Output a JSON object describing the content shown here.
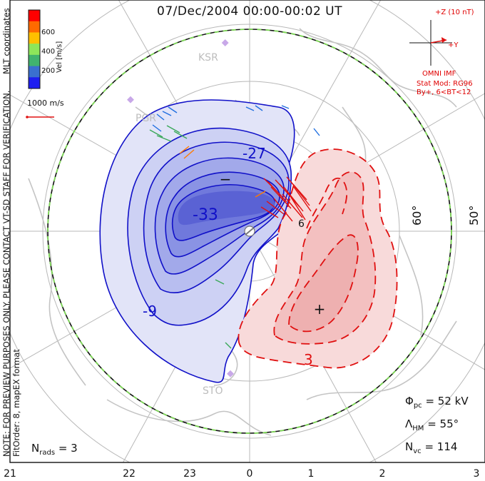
{
  "title": "07/Dec/2004 00:00-00:02 UT",
  "colorbar": {
    "label": "Vel [m/s]",
    "ticks": [
      "600",
      "400",
      "200"
    ],
    "colors": [
      "#ff0000",
      "#ff6a00",
      "#ffc000",
      "#8ee65a",
      "#41b36e",
      "#3a6fcf",
      "#1e1ef0"
    ]
  },
  "coord_system": "MLT coordinates",
  "velocity_scale": "1000 m/s",
  "imf": {
    "bz_label": "+Z (10 nT)",
    "by_label": "+Y",
    "source": "OMNI IMF",
    "model": "Stat Mod: RG96",
    "condition": "By+, 6<BT<12"
  },
  "note": "NOTE: FOR PREVIEW PURPOSES ONLY. PLEASE CONTACT VT-SD STAFF FOR VERIFICATION.",
  "fit_info": "FitOrder: 8, mapEX format",
  "stats": {
    "phi_pc_symbol": "Φ",
    "phi_pc_sub": "pc",
    "phi_pc_value": "= 52 kV",
    "lambda_symbol": "Λ",
    "lambda_sub": "HM",
    "lambda_value": "= 55°",
    "nvc_symbol": "N",
    "nvc_sub": "vc",
    "nvc_value": "= 114",
    "nrads_symbol": "N",
    "nrads_sub": "rads",
    "nrads_value": "= 3"
  },
  "mlt_labels": [
    "21",
    "22",
    "23",
    "0",
    "1",
    "2",
    "3"
  ],
  "latitude_labels": [
    "60°",
    "50°"
  ],
  "contour_labels": [
    "-33",
    "-27",
    "-9",
    "3",
    "6"
  ],
  "extrema": {
    "min_symbol": "−",
    "max_symbol": "+"
  },
  "stations": [
    "KSR",
    "PGR",
    "STO"
  ],
  "colors": {
    "negative_contour": "#1010c8",
    "positive_contour": "#e01010",
    "negative_fill": "#5a6ae6",
    "positive_fill": "#f5c8c8",
    "boundary": "#7ed957",
    "coastline": "#c0c0c0",
    "grid": "#b8b8b8"
  }
}
